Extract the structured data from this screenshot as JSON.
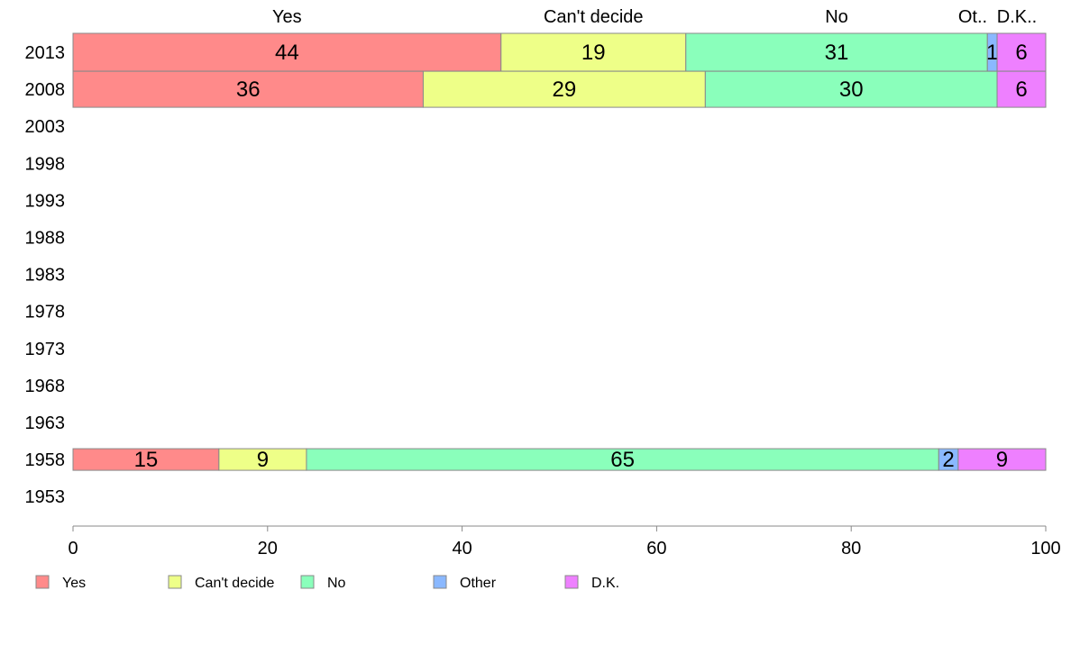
{
  "chart_data": {
    "type": "bar",
    "orientation": "horizontal",
    "stacked": true,
    "categories": [
      "2013",
      "2008",
      "2003",
      "1998",
      "1993",
      "1988",
      "1983",
      "1978",
      "1973",
      "1968",
      "1963",
      "1958",
      "1953"
    ],
    "series": [
      {
        "name": "Yes",
        "color": "#ff8a8a",
        "values": [
          44,
          36,
          null,
          null,
          null,
          null,
          null,
          null,
          null,
          null,
          null,
          15,
          null
        ]
      },
      {
        "name": "Can't decide",
        "color": "#eeff88",
        "values": [
          19,
          29,
          null,
          null,
          null,
          null,
          null,
          null,
          null,
          null,
          null,
          9,
          null
        ]
      },
      {
        "name": "No",
        "color": "#8affbb",
        "values": [
          31,
          30,
          null,
          null,
          null,
          null,
          null,
          null,
          null,
          null,
          null,
          65,
          null
        ]
      },
      {
        "name": "Other",
        "color": "#8ab8ff",
        "values": [
          1,
          null,
          null,
          null,
          null,
          null,
          null,
          null,
          null,
          null,
          null,
          2,
          null
        ]
      },
      {
        "name": "D.K.",
        "color": "#ee80ff",
        "values": [
          6,
          6,
          null,
          null,
          null,
          null,
          null,
          null,
          null,
          null,
          null,
          9,
          null
        ]
      }
    ],
    "top_labels": [
      "Yes",
      "Can't decide",
      "No",
      "Ot..",
      "D.K.."
    ],
    "x_ticks": [
      0,
      20,
      40,
      60,
      80,
      100
    ],
    "xlim": [
      0,
      100
    ],
    "grid": false,
    "legend_position": "bottom-left"
  }
}
